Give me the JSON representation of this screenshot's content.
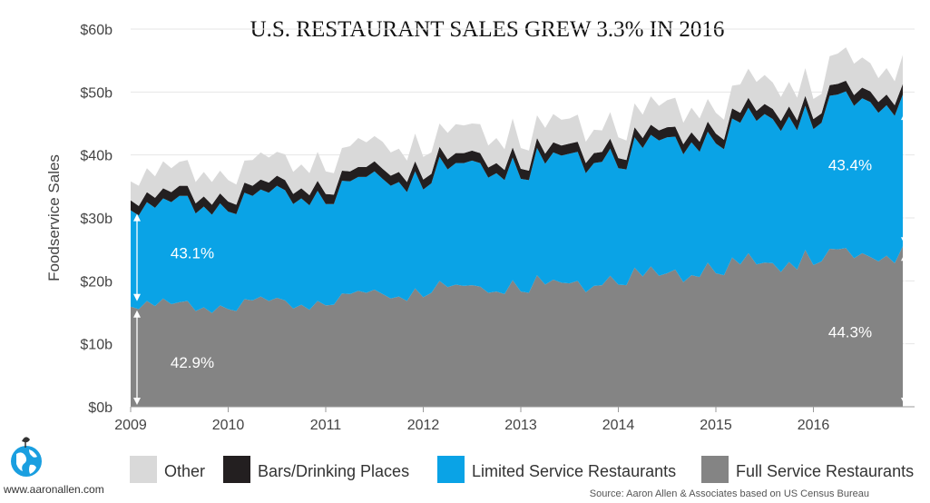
{
  "chart_data": {
    "type": "area",
    "stacked": true,
    "title": "U.S. RESTAURANT SALES GREW 3.3% IN 2016",
    "ylabel": "Foodservice Sales",
    "ylim": [
      0,
      60
    ],
    "xlim": [
      2009,
      2017
    ],
    "y_ticks": [
      {
        "value": 0,
        "label": "$0b"
      },
      {
        "value": 10,
        "label": "$10b"
      },
      {
        "value": 20,
        "label": "$20b"
      },
      {
        "value": 30,
        "label": "$30b"
      },
      {
        "value": 40,
        "label": "$40b"
      },
      {
        "value": 50,
        "label": "$50b"
      },
      {
        "value": 60,
        "label": "$60b"
      }
    ],
    "x_ticks": [
      "2009",
      "2010",
      "2011",
      "2012",
      "2013",
      "2014",
      "2015",
      "2016"
    ],
    "grid": true,
    "legend_position": "bottom",
    "x_start_year": 2009,
    "points_per_year": 12,
    "series": [
      {
        "name": "Full Service Restaurants",
        "color": "#848484",
        "values": [
          15.9,
          15.5,
          16.8,
          16.0,
          17.2,
          16.3,
          16.6,
          16.8,
          15.2,
          15.8,
          14.9,
          16.1,
          15.5,
          15.2,
          17.1,
          16.9,
          17.5,
          16.8,
          17.3,
          16.9,
          15.6,
          16.2,
          15.4,
          16.8,
          16.1,
          16.2,
          18.0,
          17.9,
          18.4,
          18.1,
          18.6,
          17.9,
          17.2,
          17.5,
          16.8,
          18.8,
          17.4,
          18.1,
          20.0,
          19.0,
          19.4,
          19.2,
          19.3,
          19.1,
          18.1,
          18.3,
          17.9,
          20.1,
          18.3,
          18.1,
          20.9,
          19.4,
          20.2,
          19.7,
          19.6,
          20.0,
          18.2,
          19.2,
          19.3,
          20.8,
          19.4,
          19.3,
          22.1,
          20.7,
          22.3,
          20.8,
          21.2,
          21.8,
          19.8,
          20.9,
          20.6,
          22.9,
          21.2,
          20.9,
          23.7,
          22.6,
          24.4,
          22.6,
          22.9,
          22.8,
          21.4,
          23.0,
          21.8,
          24.9,
          22.5,
          23.1,
          25.1,
          25.0,
          25.2,
          23.6,
          24.4,
          23.8,
          23.1,
          24.0,
          22.8,
          25.5
        ]
      },
      {
        "name": "Limited Service Restaurants",
        "color": "#0aa3e6",
        "values": [
          15.3,
          14.9,
          15.7,
          15.6,
          15.9,
          16.2,
          16.9,
          16.7,
          15.5,
          16.0,
          15.6,
          16.2,
          15.5,
          15.4,
          16.9,
          16.6,
          17.0,
          17.2,
          17.8,
          17.5,
          16.6,
          16.9,
          16.6,
          17.5,
          16.1,
          16.0,
          17.9,
          17.9,
          18.1,
          18.4,
          18.8,
          18.3,
          17.9,
          18.2,
          17.3,
          18.6,
          17.1,
          17.4,
          19.7,
          18.7,
          19.3,
          19.5,
          19.8,
          19.6,
          18.3,
          18.8,
          18.1,
          19.5,
          17.9,
          17.9,
          20.2,
          19.2,
          20.2,
          20.2,
          20.6,
          20.5,
          18.9,
          19.5,
          19.6,
          20.2,
          18.5,
          18.4,
          20.7,
          20.4,
          20.9,
          21.5,
          21.6,
          21.1,
          20.3,
          21.1,
          19.9,
          20.8,
          20.6,
          20.0,
          22.1,
          22.5,
          23.1,
          22.8,
          23.6,
          22.9,
          22.4,
          23.1,
          22.1,
          22.9,
          21.6,
          22.0,
          24.3,
          24.6,
          24.9,
          24.2,
          24.6,
          24.6,
          23.6,
          23.9,
          23.4,
          24.1
        ]
      },
      {
        "name": "Bars/Drinking Places",
        "color": "#231f20",
        "values": [
          1.6,
          1.5,
          1.6,
          1.6,
          1.6,
          1.6,
          1.6,
          1.6,
          1.6,
          1.6,
          1.6,
          1.6,
          1.6,
          1.5,
          1.6,
          1.6,
          1.6,
          1.6,
          1.6,
          1.6,
          1.6,
          1.6,
          1.6,
          1.6,
          1.6,
          1.5,
          1.6,
          1.6,
          1.6,
          1.6,
          1.6,
          1.6,
          1.6,
          1.6,
          1.6,
          1.6,
          1.6,
          1.5,
          1.6,
          1.6,
          1.6,
          1.6,
          1.6,
          1.6,
          1.6,
          1.6,
          1.6,
          1.6,
          1.6,
          1.5,
          1.6,
          1.6,
          1.6,
          1.6,
          1.6,
          1.6,
          1.6,
          1.6,
          1.6,
          1.6,
          1.6,
          1.5,
          1.6,
          1.6,
          1.6,
          1.6,
          1.6,
          1.6,
          1.6,
          1.6,
          1.6,
          1.6,
          1.6,
          1.5,
          1.6,
          1.6,
          1.6,
          1.6,
          1.6,
          1.6,
          1.6,
          1.6,
          1.6,
          1.6,
          1.6,
          1.5,
          1.7,
          1.7,
          1.7,
          1.7,
          1.7,
          1.7,
          1.7,
          1.7,
          1.7,
          1.7
        ]
      },
      {
        "name": "Other",
        "color": "#d9d9d9",
        "values": [
          3.0,
          3.2,
          3.8,
          3.4,
          4.3,
          3.8,
          3.8,
          4.1,
          3.4,
          3.9,
          3.6,
          3.6,
          3.4,
          3.2,
          3.5,
          4.1,
          4.3,
          4.0,
          3.8,
          4.1,
          3.5,
          3.8,
          3.5,
          4.6,
          3.6,
          3.4,
          3.6,
          4.0,
          4.6,
          3.9,
          4.0,
          4.3,
          3.7,
          3.7,
          3.4,
          4.4,
          3.6,
          3.4,
          3.7,
          4.2,
          4.6,
          4.4,
          4.3,
          4.6,
          3.5,
          4.0,
          3.3,
          4.6,
          3.3,
          3.2,
          3.6,
          4.1,
          4.5,
          4.1,
          4.0,
          4.3,
          3.4,
          3.7,
          3.4,
          4.2,
          3.3,
          3.1,
          3.8,
          3.7,
          4.5,
          3.9,
          4.3,
          4.6,
          3.4,
          3.9,
          3.7,
          3.6,
          3.3,
          3.2,
          3.6,
          4.5,
          4.6,
          4.6,
          4.6,
          4.2,
          3.8,
          3.9,
          3.6,
          4.4,
          3.2,
          3.1,
          4.6,
          4.8,
          5.3,
          5.0,
          4.8,
          4.5,
          3.8,
          4.2,
          3.8,
          4.6
        ]
      }
    ],
    "annotations": [
      {
        "text": "43.1%",
        "series": "Limited Service Restaurants",
        "year": 2009
      },
      {
        "text": "42.9%",
        "series": "Full Service Restaurants",
        "year": 2009
      },
      {
        "text": "43.4%",
        "series": "Limited Service Restaurants",
        "year": 2016
      },
      {
        "text": "44.3%",
        "series": "Full Service Restaurants",
        "year": 2016
      }
    ]
  },
  "website": "www.aaronallen.com",
  "source": "Source: Aaron Allen & Associates based on US Census Bureau"
}
